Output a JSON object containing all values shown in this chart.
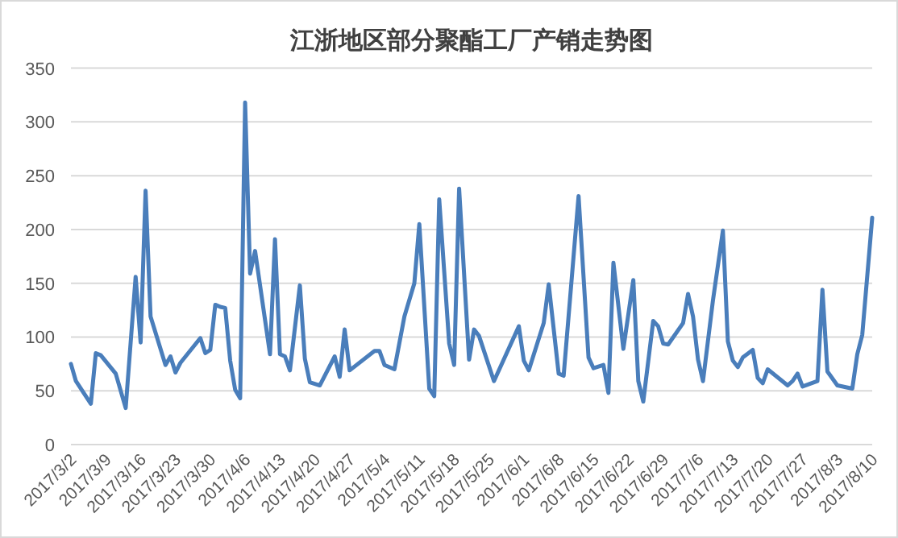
{
  "chart_data": {
    "type": "line",
    "title": "江浙地区部分聚酯工厂产销走势图",
    "grid": "y",
    "xlim": [
      "2017-03-02",
      "2017-08-10"
    ],
    "xticks": [
      {
        "value": "2017-03-02",
        "label": "2017/3/2"
      },
      {
        "value": "2017-03-09",
        "label": "2017/3/9"
      },
      {
        "value": "2017-03-16",
        "label": "2017/3/16"
      },
      {
        "value": "2017-03-23",
        "label": "2017/3/23"
      },
      {
        "value": "2017-03-30",
        "label": "2017/3/30"
      },
      {
        "value": "2017-04-06",
        "label": "2017/4/6"
      },
      {
        "value": "2017-04-13",
        "label": "2017/4/13"
      },
      {
        "value": "2017-04-20",
        "label": "2017/4/20"
      },
      {
        "value": "2017-04-27",
        "label": "2017/4/27"
      },
      {
        "value": "2017-05-04",
        "label": "2017/5/4"
      },
      {
        "value": "2017-05-11",
        "label": "2017/5/11"
      },
      {
        "value": "2017-05-18",
        "label": "2017/5/18"
      },
      {
        "value": "2017-05-25",
        "label": "2017/5/25"
      },
      {
        "value": "2017-06-01",
        "label": "2017/6/1"
      },
      {
        "value": "2017-06-08",
        "label": "2017/6/8"
      },
      {
        "value": "2017-06-15",
        "label": "2017/6/15"
      },
      {
        "value": "2017-06-22",
        "label": "2017/6/22"
      },
      {
        "value": "2017-06-29",
        "label": "2017/6/29"
      },
      {
        "value": "2017-07-06",
        "label": "2017/7/6"
      },
      {
        "value": "2017-07-13",
        "label": "2017/7/13"
      },
      {
        "value": "2017-07-20",
        "label": "2017/7/20"
      },
      {
        "value": "2017-07-27",
        "label": "2017/7/27"
      },
      {
        "value": "2017-08-03",
        "label": "2017/8/3"
      },
      {
        "value": "2017-08-10",
        "label": "2017/8/10"
      }
    ],
    "ylim": [
      0,
      350
    ],
    "yticks": [
      0,
      50,
      100,
      150,
      200,
      250,
      300,
      350
    ],
    "series": [
      {
        "color": "#4a7ebb",
        "x": [
          "2017-03-02",
          "2017-03-03",
          "2017-03-06",
          "2017-03-07",
          "2017-03-08",
          "2017-03-11",
          "2017-03-13",
          "2017-03-15",
          "2017-03-16",
          "2017-03-17",
          "2017-03-18",
          "2017-03-21",
          "2017-03-22",
          "2017-03-23",
          "2017-03-24",
          "2017-03-28",
          "2017-03-29",
          "2017-03-30",
          "2017-03-31",
          "2017-04-01",
          "2017-04-02",
          "2017-04-03",
          "2017-04-04",
          "2017-04-05",
          "2017-04-06",
          "2017-04-07",
          "2017-04-08",
          "2017-04-11",
          "2017-04-12",
          "2017-04-13",
          "2017-04-14",
          "2017-04-15",
          "2017-04-17",
          "2017-04-18",
          "2017-04-19",
          "2017-04-21",
          "2017-04-24",
          "2017-04-25",
          "2017-04-26",
          "2017-04-27",
          "2017-05-02",
          "2017-05-03",
          "2017-05-04",
          "2017-05-06",
          "2017-05-08",
          "2017-05-10",
          "2017-05-11",
          "2017-05-13",
          "2017-05-14",
          "2017-05-15",
          "2017-05-17",
          "2017-05-18",
          "2017-05-19",
          "2017-05-21",
          "2017-05-22",
          "2017-05-23",
          "2017-05-26",
          "2017-05-31",
          "2017-06-01",
          "2017-06-02",
          "2017-06-05",
          "2017-06-06",
          "2017-06-08",
          "2017-06-09",
          "2017-06-12",
          "2017-06-14",
          "2017-06-15",
          "2017-06-17",
          "2017-06-18",
          "2017-06-19",
          "2017-06-21",
          "2017-06-23",
          "2017-06-24",
          "2017-06-25",
          "2017-06-27",
          "2017-06-28",
          "2017-06-29",
          "2017-06-30",
          "2017-07-03",
          "2017-07-04",
          "2017-07-05",
          "2017-07-06",
          "2017-07-07",
          "2017-07-09",
          "2017-07-11",
          "2017-07-12",
          "2017-07-13",
          "2017-07-14",
          "2017-07-15",
          "2017-07-17",
          "2017-07-18",
          "2017-07-19",
          "2017-07-20",
          "2017-07-24",
          "2017-07-25",
          "2017-07-26",
          "2017-07-27",
          "2017-07-30",
          "2017-07-31",
          "2017-08-01",
          "2017-08-03",
          "2017-08-06",
          "2017-08-07",
          "2017-08-08",
          "2017-08-10"
        ],
        "values": [
          75,
          59,
          38,
          85,
          83,
          66,
          34,
          156,
          95,
          236,
          119,
          74,
          82,
          67,
          76,
          99,
          85,
          88,
          130,
          128,
          127,
          78,
          51,
          43,
          318,
          159,
          180,
          84,
          191,
          84,
          82,
          69,
          148,
          80,
          58,
          55,
          82,
          63,
          107,
          69,
          87,
          87,
          74,
          70,
          119,
          150,
          205,
          52,
          45,
          228,
          94,
          74,
          238,
          79,
          107,
          101,
          59,
          110,
          78,
          69,
          113,
          149,
          66,
          64,
          231,
          81,
          71,
          74,
          48,
          169,
          89,
          153,
          59,
          40,
          115,
          110,
          94,
          93,
          113,
          140,
          119,
          79,
          59,
          134,
          199,
          96,
          78,
          72,
          81,
          88,
          62,
          57,
          70,
          55,
          59,
          66,
          54,
          59,
          144,
          68,
          55,
          52,
          84,
          102,
          211
        ]
      }
    ]
  }
}
